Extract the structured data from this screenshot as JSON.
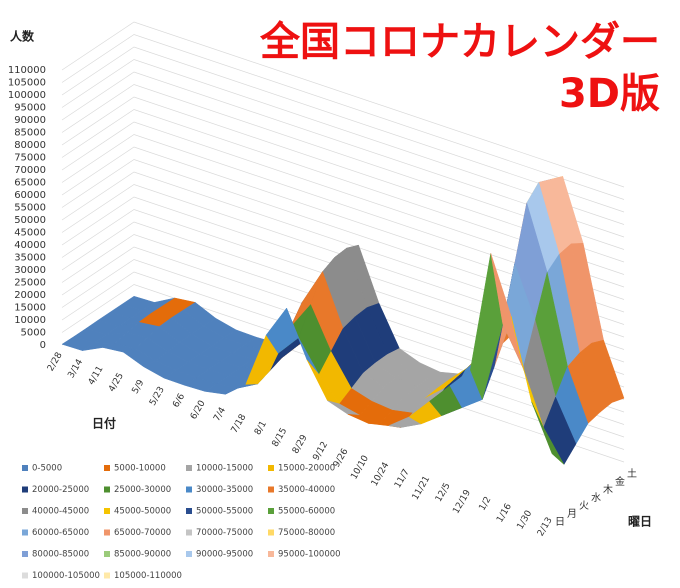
{
  "chart_data": {
    "type": "surface",
    "title": "全国コロナカレンダー",
    "subtitle": "3D版",
    "y_label": "人数",
    "x_label": "日付",
    "depth_label": "曜日",
    "categories": [
      "2/28",
      "3/14",
      "4/11",
      "4/25",
      "5/9",
      "5/23",
      "6/6",
      "6/20",
      "7/4",
      "7/18",
      "8/1",
      "8/15",
      "8/29",
      "9/12",
      "9/26",
      "10/10",
      "10/24",
      "11/7",
      "11/21",
      "12/5",
      "12/19",
      "1/2",
      "1/16",
      "1/30",
      "2/13"
    ],
    "series": [
      {
        "name": "日",
        "values": [
          300,
          500,
          4500,
          5400,
          2300,
          500,
          400,
          700,
          2300,
          9000,
          31500,
          45000,
          27000,
          13500,
          10800,
          9900,
          11700,
          18000,
          27000,
          36000,
          45000,
          94500,
          72000,
          40500,
          22500
        ]
      },
      {
        "name": "月",
        "values": [
          200,
          400,
          3000,
          3600,
          1500,
          400,
          200,
          500,
          1500,
          6000,
          21000,
          30000,
          18000,
          9000,
          7200,
          6600,
          7800,
          12000,
          18000,
          24000,
          30000,
          63000,
          48000,
          27000,
          15000
        ]
      },
      {
        "name": "火",
        "values": [
          200,
          500,
          4000,
          4800,
          2000,
          500,
          300,
          600,
          2000,
          8000,
          28000,
          40000,
          24000,
          12000,
          9600,
          8800,
          10400,
          16000,
          24000,
          32000,
          40000,
          84000,
          64000,
          36000,
          20000
        ]
      },
      {
        "name": "水",
        "values": [
          300,
          600,
          5000,
          6000,
          2500,
          600,
          400,
          800,
          2500,
          10000,
          35000,
          50000,
          30000,
          15000,
          12000,
          11000,
          13000,
          20000,
          30000,
          40000,
          50000,
          105000,
          80000,
          45000,
          25000
        ]
      },
      {
        "name": "木",
        "values": [
          300,
          600,
          5300,
          6300,
          2600,
          600,
          400,
          800,
          2600,
          10500,
          36800,
          52500,
          31500,
          15800,
          12600,
          11600,
          13700,
          21000,
          31500,
          42000,
          52500,
          110000,
          84000,
          47300,
          26300
        ]
      },
      {
        "name": "金",
        "values": [
          300,
          700,
          5200,
          6200,
          2700,
          700,
          500,
          900,
          2700,
          11000,
          37000,
          53000,
          32000,
          16000,
          13000,
          12000,
          14000,
          22000,
          32000,
          43000,
          54000,
          108000,
          85000,
          48000,
          27000
        ]
      },
      {
        "name": "土",
        "values": [
          300,
          600,
          5100,
          6100,
          2500,
          600,
          400,
          800,
          2500,
          10200,
          35500,
          51000,
          30500,
          15200,
          12200,
          11200,
          13200,
          20500,
          30500,
          41000,
          51000,
          106000,
          82000,
          46000,
          25500
        ]
      }
    ],
    "ylim": [
      0,
      110000
    ],
    "yticks": [
      0,
      5000,
      10000,
      15000,
      20000,
      25000,
      30000,
      35000,
      40000,
      45000,
      50000,
      55000,
      60000,
      65000,
      70000,
      75000,
      80000,
      85000,
      90000,
      95000,
      100000,
      105000,
      110000
    ],
    "grid": true,
    "bands": [
      {
        "label": "0-5000",
        "from": 0,
        "to": 5000,
        "color": "#4f81bd"
      },
      {
        "label": "5000-10000",
        "from": 5000,
        "to": 10000,
        "color": "#e46c0a"
      },
      {
        "label": "10000-15000",
        "from": 10000,
        "to": 15000,
        "color": "#a5a5a5"
      },
      {
        "label": "15000-20000",
        "from": 15000,
        "to": 20000,
        "color": "#f2b800"
      },
      {
        "label": "20000-25000",
        "from": 20000,
        "to": 25000,
        "color": "#1f3d7a"
      },
      {
        "label": "25000-30000",
        "from": 25000,
        "to": 30000,
        "color": "#4e8f2f"
      },
      {
        "label": "30000-35000",
        "from": 30000,
        "to": 35000,
        "color": "#4a89c8"
      },
      {
        "label": "35000-40000",
        "from": 35000,
        "to": 40000,
        "color": "#e8782a"
      },
      {
        "label": "40000-45000",
        "from": 40000,
        "to": 45000,
        "color": "#8c8c8c"
      },
      {
        "label": "45000-50000",
        "from": 45000,
        "to": 50000,
        "color": "#f5c400"
      },
      {
        "label": "50000-55000",
        "from": 50000,
        "to": 55000,
        "color": "#2a4d8f"
      },
      {
        "label": "55000-60000",
        "from": 55000,
        "to": 60000,
        "color": "#5aa03a"
      },
      {
        "label": "60000-65000",
        "from": 60000,
        "to": 65000,
        "color": "#7aa7d8"
      },
      {
        "label": "65000-70000",
        "from": 65000,
        "to": 70000,
        "color": "#f0956a"
      },
      {
        "label": "70000-75000",
        "from": 70000,
        "to": 75000,
        "color": "#c4c4c4"
      },
      {
        "label": "75000-80000",
        "from": 75000,
        "to": 80000,
        "color": "#ffd966"
      },
      {
        "label": "80000-85000",
        "from": 80000,
        "to": 85000,
        "color": "#7f9fd6"
      },
      {
        "label": "85000-90000",
        "from": 85000,
        "to": 90000,
        "color": "#9bcb7a"
      },
      {
        "label": "90000-95000",
        "from": 90000,
        "to": 95000,
        "color": "#a8c8ec"
      },
      {
        "label": "95000-100000",
        "from": 95000,
        "to": 100000,
        "color": "#f8b89a"
      },
      {
        "label": "100000-105000",
        "from": 100000,
        "to": 105000,
        "color": "#dcdcdc"
      },
      {
        "label": "105000-110000",
        "from": 105000,
        "to": 110000,
        "color": "#ffe9a8"
      }
    ]
  }
}
